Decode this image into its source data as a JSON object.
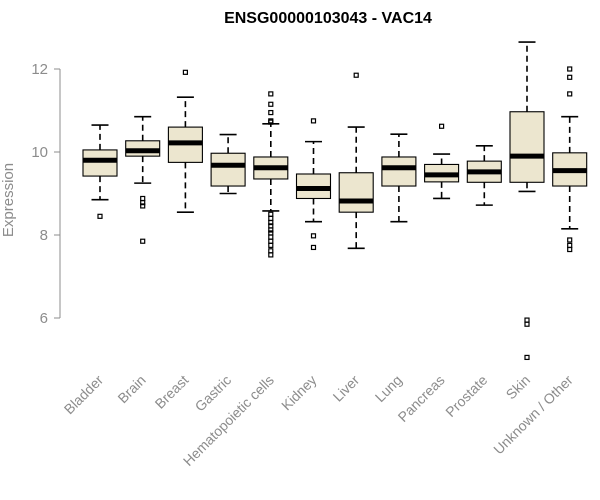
{
  "chart_data": {
    "type": "boxplot",
    "title": "ENSG00000103043 - VAC14",
    "xlabel": "",
    "ylabel": "Expression",
    "ylim": [
      4.8,
      12.9
    ],
    "yticks": [
      6,
      8,
      10,
      12
    ],
    "box_color": "#ece6cf",
    "axis_color": "#8c8c8c",
    "categories": [
      "Bladder",
      "Brain",
      "Breast",
      "Gastric",
      "Hematopoietic cells",
      "Kidney",
      "Liver",
      "Lung",
      "Pancreas",
      "Prostate",
      "Skin",
      "Unknown / Other"
    ],
    "boxes": [
      {
        "category": "Bladder",
        "whisker_low": 8.85,
        "q1": 9.42,
        "median": 9.8,
        "q3": 10.05,
        "whisker_high": 10.65,
        "outliers": [
          8.45
        ]
      },
      {
        "category": "Brain",
        "whisker_low": 9.25,
        "q1": 9.9,
        "median": 10.03,
        "q3": 10.27,
        "whisker_high": 10.85,
        "outliers": [
          8.7,
          8.78,
          8.88,
          7.85
        ]
      },
      {
        "category": "Breast",
        "whisker_low": 8.55,
        "q1": 9.75,
        "median": 10.22,
        "q3": 10.6,
        "whisker_high": 11.32,
        "outliers": [
          11.92
        ]
      },
      {
        "category": "Gastric",
        "whisker_low": 9.0,
        "q1": 9.18,
        "median": 9.68,
        "q3": 9.97,
        "whisker_high": 10.42,
        "outliers": []
      },
      {
        "category": "Hematopoietic cells",
        "whisker_low": 8.58,
        "q1": 9.35,
        "median": 9.62,
        "q3": 9.88,
        "whisker_high": 10.68,
        "outliers": [
          11.4,
          11.15,
          10.95,
          10.75,
          10.72,
          8.5,
          8.4,
          8.3,
          8.22,
          8.12,
          8.05,
          7.95,
          7.85,
          7.75,
          7.62,
          7.52
        ]
      },
      {
        "category": "Kidney",
        "whisker_low": 8.32,
        "q1": 8.88,
        "median": 9.12,
        "q3": 9.47,
        "whisker_high": 10.25,
        "outliers": [
          10.75,
          7.98,
          7.7
        ]
      },
      {
        "category": "Liver",
        "whisker_low": 7.68,
        "q1": 8.55,
        "median": 8.82,
        "q3": 9.5,
        "whisker_high": 10.6,
        "outliers": [
          11.85
        ]
      },
      {
        "category": "Lung",
        "whisker_low": 8.32,
        "q1": 9.18,
        "median": 9.62,
        "q3": 9.88,
        "whisker_high": 10.43,
        "outliers": []
      },
      {
        "category": "Pancreas",
        "whisker_low": 8.88,
        "q1": 9.28,
        "median": 9.45,
        "q3": 9.7,
        "whisker_high": 9.95,
        "outliers": [
          10.62
        ]
      },
      {
        "category": "Prostate",
        "whisker_low": 8.72,
        "q1": 9.27,
        "median": 9.52,
        "q3": 9.78,
        "whisker_high": 10.15,
        "outliers": []
      },
      {
        "category": "Skin",
        "whisker_low": 9.05,
        "q1": 9.27,
        "median": 9.9,
        "q3": 10.97,
        "whisker_high": 12.65,
        "outliers": [
          5.95,
          5.85,
          5.05
        ]
      },
      {
        "category": "Unknown / Other",
        "whisker_low": 8.15,
        "q1": 9.18,
        "median": 9.55,
        "q3": 9.98,
        "whisker_high": 10.85,
        "outliers": [
          12.0,
          11.8,
          11.4,
          7.88,
          7.75,
          7.65
        ]
      }
    ]
  }
}
